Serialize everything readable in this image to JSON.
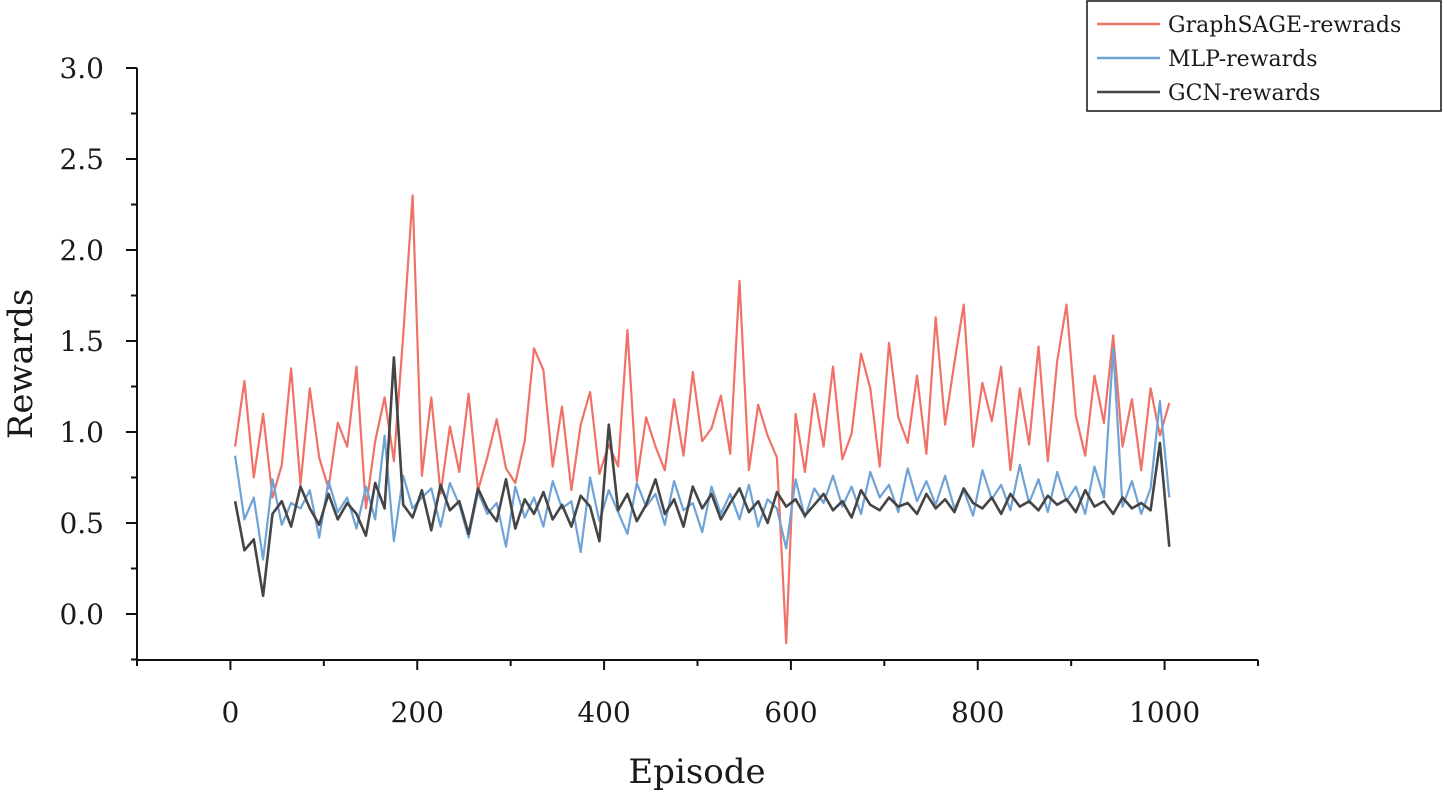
{
  "chart_data": {
    "type": "line",
    "xlabel": "Episode",
    "ylabel": "Rewards",
    "xlim": [
      -100,
      1100
    ],
    "ylim": [
      -0.25,
      3.0
    ],
    "x_ticks": [
      0,
      200,
      400,
      600,
      800,
      1000
    ],
    "x_tick_labels": [
      "0",
      "200",
      "400",
      "600",
      "800",
      "1000"
    ],
    "y_ticks": [
      0.0,
      0.5,
      1.0,
      1.5,
      2.0,
      2.5,
      3.0
    ],
    "y_tick_labels": [
      "0.0",
      "0.5",
      "1.0",
      "1.5",
      "2.0",
      "2.5",
      "3.0"
    ],
    "grid": false,
    "legend_position": "top-right",
    "x_step": 10,
    "series": [
      {
        "name": "GraphSAGE-rewrads",
        "color": "#f07167",
        "x0": 5,
        "values": [
          0.92,
          1.28,
          0.75,
          1.1,
          0.64,
          0.82,
          1.35,
          0.71,
          1.24,
          0.86,
          0.69,
          1.05,
          0.92,
          1.36,
          0.58,
          0.95,
          1.19,
          0.84,
          1.53,
          2.3,
          0.76,
          1.19,
          0.66,
          1.03,
          0.78,
          1.21,
          0.68,
          0.86,
          1.07,
          0.8,
          0.72,
          0.95,
          1.46,
          1.34,
          0.81,
          1.14,
          0.68,
          1.04,
          1.22,
          0.77,
          0.93,
          0.81,
          1.56,
          0.73,
          1.08,
          0.92,
          0.79,
          1.18,
          0.87,
          1.33,
          0.95,
          1.02,
          1.2,
          0.88,
          1.83,
          0.79,
          1.15,
          0.98,
          0.86,
          -0.16,
          1.1,
          0.78,
          1.21,
          0.92,
          1.36,
          0.85,
          0.99,
          1.43,
          1.24,
          0.81,
          1.49,
          1.08,
          0.94,
          1.31,
          0.88,
          1.63,
          1.04,
          1.38,
          1.7,
          0.92,
          1.27,
          1.06,
          1.36,
          0.79,
          1.24,
          0.93,
          1.47,
          0.84,
          1.39,
          1.7,
          1.09,
          0.87,
          1.31,
          1.05,
          1.53,
          0.92,
          1.18,
          0.79,
          1.24,
          0.98,
          1.16
        ]
      },
      {
        "name": "MLP-rewards",
        "color": "#6fa3d6",
        "x0": 5,
        "values": [
          0.87,
          0.52,
          0.64,
          0.3,
          0.74,
          0.49,
          0.61,
          0.58,
          0.68,
          0.42,
          0.73,
          0.56,
          0.64,
          0.47,
          0.7,
          0.52,
          0.98,
          0.4,
          0.76,
          0.58,
          0.64,
          0.69,
          0.48,
          0.72,
          0.6,
          0.42,
          0.67,
          0.55,
          0.61,
          0.37,
          0.7,
          0.53,
          0.64,
          0.48,
          0.73,
          0.58,
          0.62,
          0.34,
          0.75,
          0.51,
          0.68,
          0.56,
          0.44,
          0.72,
          0.59,
          0.66,
          0.49,
          0.73,
          0.57,
          0.61,
          0.45,
          0.7,
          0.55,
          0.66,
          0.52,
          0.71,
          0.48,
          0.63,
          0.58,
          0.36,
          0.74,
          0.53,
          0.69,
          0.61,
          0.76,
          0.59,
          0.7,
          0.55,
          0.78,
          0.64,
          0.71,
          0.56,
          0.8,
          0.62,
          0.73,
          0.6,
          0.76,
          0.58,
          0.68,
          0.54,
          0.79,
          0.63,
          0.71,
          0.57,
          0.82,
          0.61,
          0.74,
          0.56,
          0.78,
          0.62,
          0.7,
          0.55,
          0.81,
          0.64,
          1.46,
          0.59,
          0.73,
          0.55,
          0.69,
          1.17,
          0.64
        ]
      },
      {
        "name": "GCN-rewards",
        "color": "#454545",
        "x0": 5,
        "values": [
          0.62,
          0.35,
          0.41,
          0.1,
          0.55,
          0.62,
          0.48,
          0.7,
          0.58,
          0.49,
          0.66,
          0.52,
          0.61,
          0.55,
          0.43,
          0.72,
          0.58,
          1.41,
          0.6,
          0.53,
          0.68,
          0.46,
          0.71,
          0.57,
          0.62,
          0.44,
          0.69,
          0.58,
          0.51,
          0.74,
          0.47,
          0.63,
          0.55,
          0.67,
          0.52,
          0.6,
          0.48,
          0.65,
          0.59,
          0.4,
          1.04,
          0.57,
          0.66,
          0.51,
          0.6,
          0.74,
          0.55,
          0.63,
          0.48,
          0.7,
          0.58,
          0.66,
          0.52,
          0.61,
          0.69,
          0.56,
          0.62,
          0.5,
          0.67,
          0.59,
          0.63,
          0.54,
          0.6,
          0.66,
          0.57,
          0.62,
          0.53,
          0.68,
          0.6,
          0.57,
          0.64,
          0.59,
          0.61,
          0.55,
          0.66,
          0.58,
          0.63,
          0.56,
          0.69,
          0.61,
          0.58,
          0.64,
          0.55,
          0.66,
          0.59,
          0.62,
          0.57,
          0.65,
          0.6,
          0.63,
          0.56,
          0.68,
          0.59,
          0.62,
          0.55,
          0.64,
          0.58,
          0.61,
          0.57,
          0.94,
          0.37
        ]
      }
    ]
  }
}
